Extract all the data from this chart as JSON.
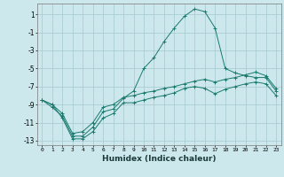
{
  "xlabel": "Humidex (Indice chaleur)",
  "bg_color": "#cde8ec",
  "grid_color": "#aacdd4",
  "line_color": "#1a7a6e",
  "xlim": [
    -0.5,
    23.5
  ],
  "ylim": [
    -13.5,
    2.2
  ],
  "xtick_vals": [
    0,
    1,
    2,
    3,
    4,
    5,
    6,
    7,
    8,
    9,
    10,
    11,
    12,
    13,
    14,
    15,
    16,
    17,
    18,
    19,
    20,
    21,
    22,
    23
  ],
  "xtick_labels": [
    "0",
    "1",
    "2",
    "3",
    "4",
    "5",
    "6",
    "7",
    "8",
    "9",
    "10",
    "11",
    "12",
    "13",
    "14",
    "15",
    "16",
    "17",
    "18",
    "19",
    "20",
    "21",
    "22",
    "23"
  ],
  "ytick_vals": [
    1,
    -1,
    -3,
    -5,
    -7,
    -9,
    -11,
    -13
  ],
  "ytick_labels": [
    "1",
    "-1",
    "-3",
    "-5",
    "-7",
    "-9",
    "-11",
    "-13"
  ],
  "line1_x": [
    0,
    1,
    2,
    3,
    4,
    5,
    6,
    7,
    8,
    9,
    10,
    11,
    12,
    13,
    14,
    15,
    16,
    17,
    18,
    19,
    20,
    21,
    22,
    23
  ],
  "line1_y": [
    -8.5,
    -9.3,
    -10.3,
    -12.5,
    -12.5,
    -11.5,
    -9.8,
    -9.5,
    -8.3,
    -7.5,
    -5.0,
    -3.8,
    -2.0,
    -0.5,
    0.8,
    1.6,
    1.3,
    -0.5,
    -5.0,
    -5.5,
    -5.8,
    -6.0,
    -6.0,
    -7.5
  ],
  "line2_x": [
    0,
    1,
    2,
    3,
    4,
    5,
    6,
    7,
    8,
    9,
    10,
    11,
    12,
    13,
    14,
    15,
    16,
    17,
    18,
    19,
    20,
    21,
    22,
    23
  ],
  "line2_y": [
    -8.5,
    -9.0,
    -10.0,
    -12.2,
    -12.0,
    -11.0,
    -9.3,
    -9.0,
    -8.2,
    -8.0,
    -7.7,
    -7.5,
    -7.2,
    -7.0,
    -6.7,
    -6.4,
    -6.2,
    -6.5,
    -6.2,
    -6.0,
    -5.7,
    -5.4,
    -5.8,
    -7.2
  ],
  "line3_x": [
    0,
    1,
    2,
    3,
    4,
    5,
    6,
    7,
    8,
    9,
    10,
    11,
    12,
    13,
    14,
    15,
    16,
    17,
    18,
    19,
    20,
    21,
    22,
    23
  ],
  "line3_y": [
    -8.5,
    -9.0,
    -10.5,
    -12.8,
    -12.8,
    -12.0,
    -10.5,
    -10.0,
    -8.8,
    -8.8,
    -8.5,
    -8.2,
    -8.0,
    -7.7,
    -7.2,
    -7.0,
    -7.2,
    -7.8,
    -7.3,
    -7.0,
    -6.7,
    -6.5,
    -6.7,
    -8.0
  ]
}
